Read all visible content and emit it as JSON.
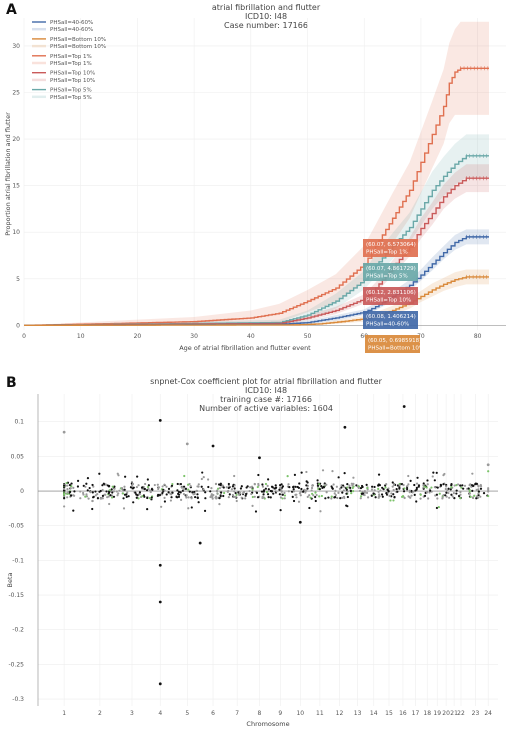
{
  "panels": [
    {
      "letter": "A"
    },
    {
      "letter": "B"
    }
  ],
  "chart_data": [
    {
      "type": "line",
      "title": "atrial fibrillation and flutter",
      "subtitle_lines": [
        "ICD10: I48",
        "Case number: 17166"
      ],
      "xlabel": "Age of atrial fibrillation and flutter event",
      "ylabel": "Proportion atrial fibrillation and flutter",
      "xlim": [
        0,
        85
      ],
      "ylim": [
        -0.5,
        33
      ],
      "xticks": [
        "0",
        "10",
        "20",
        "30",
        "40",
        "50",
        "60",
        "70",
        "80"
      ],
      "yticks": [
        "0",
        "5",
        "10",
        "15",
        "20",
        "25",
        "30"
      ],
      "grid": true,
      "legend_position": "top-left",
      "legend": [
        {
          "label": "PHSall=40-60%",
          "color": "#4169a8",
          "ci": false
        },
        {
          "label": "PHSall=40-60%",
          "color": "#4169a8",
          "ci": true
        },
        {
          "label": "PHSall=Bottom 10%",
          "color": "#d9893a",
          "ci": false
        },
        {
          "label": "PHSall=Bottom 10%",
          "color": "#d9893a",
          "ci": true
        },
        {
          "label": "PHSall=Top 1%",
          "color": "#e07050",
          "ci": false
        },
        {
          "label": "PHSall=Top 1%",
          "color": "#e07050",
          "ci": true
        },
        {
          "label": "PHSall=Top 10%",
          "color": "#c95a5a",
          "ci": false
        },
        {
          "label": "PHSall=Top 10%",
          "color": "#c95a5a",
          "ci": true
        },
        {
          "label": "PHSall=Top 5%",
          "color": "#6aa8a8",
          "ci": false
        },
        {
          "label": "PHSall=Top 5%",
          "color": "#6aa8a8",
          "ci": true
        }
      ],
      "series": [
        {
          "name": "PHSall=Top 1%",
          "color": "#e07050",
          "x": [
            0,
            16,
            30,
            40,
            45,
            50,
            55,
            60,
            62,
            65,
            68,
            70,
            72,
            74,
            75,
            76,
            77,
            82
          ],
          "y": [
            0,
            0.2,
            0.4,
            0.8,
            1.3,
            2.6,
            4.0,
            6.57,
            8.5,
            11.5,
            14.5,
            17.5,
            20.5,
            23.5,
            26.0,
            27.2,
            27.6,
            27.6
          ],
          "ci_width": [
            0,
            0.3,
            0.5,
            0.8,
            1.0,
            1.2,
            1.5,
            2.0,
            2.3,
            2.7,
            3.0,
            3.3,
            3.6,
            4.0,
            4.3,
            4.6,
            5.0,
            5.0
          ]
        },
        {
          "name": "PHSall=Top 5%",
          "color": "#6aa8a8",
          "x": [
            0,
            45,
            50,
            55,
            60,
            62,
            65,
            68,
            70,
            72,
            74,
            76,
            78,
            82
          ],
          "y": [
            0,
            0.3,
            1.1,
            2.6,
            4.86,
            6.4,
            8.5,
            10.5,
            12.5,
            14.5,
            16.0,
            17.3,
            18.2,
            18.2
          ],
          "ci_width": [
            0,
            0.3,
            0.5,
            0.8,
            1.0,
            1.2,
            1.4,
            1.6,
            1.8,
            2.0,
            2.1,
            2.2,
            2.3,
            2.3
          ]
        },
        {
          "name": "PHSall=Top 10%",
          "color": "#c95a5a",
          "x": [
            0,
            45,
            50,
            55,
            60,
            62,
            65,
            68,
            70,
            72,
            74,
            76,
            78,
            82
          ],
          "y": [
            0,
            0.2,
            0.8,
            1.6,
            2.83,
            4.0,
            6.2,
            8.4,
            10.4,
            12.0,
            13.8,
            15.0,
            15.8,
            15.8
          ],
          "ci_width": [
            0,
            0.2,
            0.3,
            0.4,
            0.5,
            0.6,
            0.8,
            1.0,
            1.1,
            1.2,
            1.3,
            1.4,
            1.5,
            1.5
          ]
        },
        {
          "name": "PHSall=40-60%",
          "color": "#4169a8",
          "x": [
            0,
            45,
            50,
            55,
            60,
            62,
            65,
            68,
            70,
            72,
            74,
            76,
            78,
            82
          ],
          "y": [
            0,
            0.1,
            0.3,
            0.8,
            1.41,
            2.0,
            3.1,
            4.3,
            5.4,
            6.6,
            7.8,
            8.9,
            9.5,
            9.5
          ],
          "ci_width": [
            0,
            0.1,
            0.2,
            0.3,
            0.3,
            0.4,
            0.5,
            0.6,
            0.6,
            0.7,
            0.7,
            0.8,
            0.8,
            0.8
          ]
        },
        {
          "name": "PHSall=Bottom 10%",
          "color": "#d9893a",
          "x": [
            0,
            48,
            52,
            56,
            60,
            62,
            65,
            68,
            70,
            72,
            74,
            76,
            78,
            82
          ],
          "y": [
            0,
            0.05,
            0.15,
            0.4,
            0.7,
            1.0,
            1.6,
            2.4,
            3.1,
            3.8,
            4.4,
            4.9,
            5.2,
            5.2
          ],
          "ci_width": [
            0,
            0.05,
            0.1,
            0.2,
            0.3,
            0.4,
            0.5,
            0.6,
            0.6,
            0.7,
            0.7,
            0.8,
            0.8,
            0.8
          ]
        }
      ],
      "annotations": [
        {
          "coords": "(60.07, 6.573064)",
          "label": "PHSall=Top 1%",
          "color": "#e07050"
        },
        {
          "coords": "(60.07, 4.861729)",
          "label": "PHSall=Top 5%",
          "color": "#6aa8a8"
        },
        {
          "coords": "(60.12, 2.831106)",
          "label": "PHSall=Top 10%",
          "color": "#c95a5a"
        },
        {
          "coords": "(60.08, 1.406214)",
          "label": "PHSall=40-60%",
          "color": "#4169a8"
        },
        {
          "coords": "(60.05, 0.6985918)",
          "label": "PHSall=Bottom 10%",
          "color": "#d9893a"
        }
      ]
    },
    {
      "type": "scatter",
      "title": "snpnet-Cox coefficient plot for atrial fibrillation and flutter",
      "subtitle_lines": [
        "ICD10: I48",
        "training case #: 17166",
        "Number of active variables: 1604"
      ],
      "xlabel": "Chromosome",
      "ylabel": "Beta",
      "xticks": [
        "1",
        "2",
        "3",
        "4",
        "5",
        "6",
        "7",
        "8",
        "9",
        "10",
        "11",
        "12",
        "13",
        "14",
        "15",
        "16",
        "17",
        "18",
        "19",
        "20",
        "21",
        "22",
        "23",
        "24"
      ],
      "yticks": [
        "0.1",
        "0.05",
        "0",
        "-0.05",
        "-0.1",
        "-0.15",
        "-0.2",
        "-0.25",
        "-0.3"
      ],
      "ylim": [
        -0.31,
        0.14
      ],
      "grid": true,
      "colors": {
        "black": "#111111",
        "gray": "#9a9a9a",
        "green": "#7cc36a"
      },
      "notable_points": [
        {
          "chrom": 1,
          "beta": 0.085,
          "color": "gray"
        },
        {
          "chrom": 4,
          "beta": 0.102,
          "color": "black"
        },
        {
          "chrom": 4,
          "beta": -0.107,
          "color": "black"
        },
        {
          "chrom": 4,
          "beta": -0.16,
          "color": "black"
        },
        {
          "chrom": 4,
          "beta": -0.278,
          "color": "black"
        },
        {
          "chrom": 5.5,
          "beta": -0.075,
          "color": "black"
        },
        {
          "chrom": 6,
          "beta": 0.065,
          "color": "black"
        },
        {
          "chrom": 5,
          "beta": 0.068,
          "color": "gray"
        },
        {
          "chrom": 8,
          "beta": 0.048,
          "color": "black"
        },
        {
          "chrom": 12.3,
          "beta": 0.092,
          "color": "black"
        },
        {
          "chrom": 16.1,
          "beta": 0.122,
          "color": "black"
        },
        {
          "chrom": 10,
          "beta": -0.045,
          "color": "black"
        },
        {
          "chrom": 24,
          "beta": 0.038,
          "color": "gray"
        }
      ]
    }
  ]
}
